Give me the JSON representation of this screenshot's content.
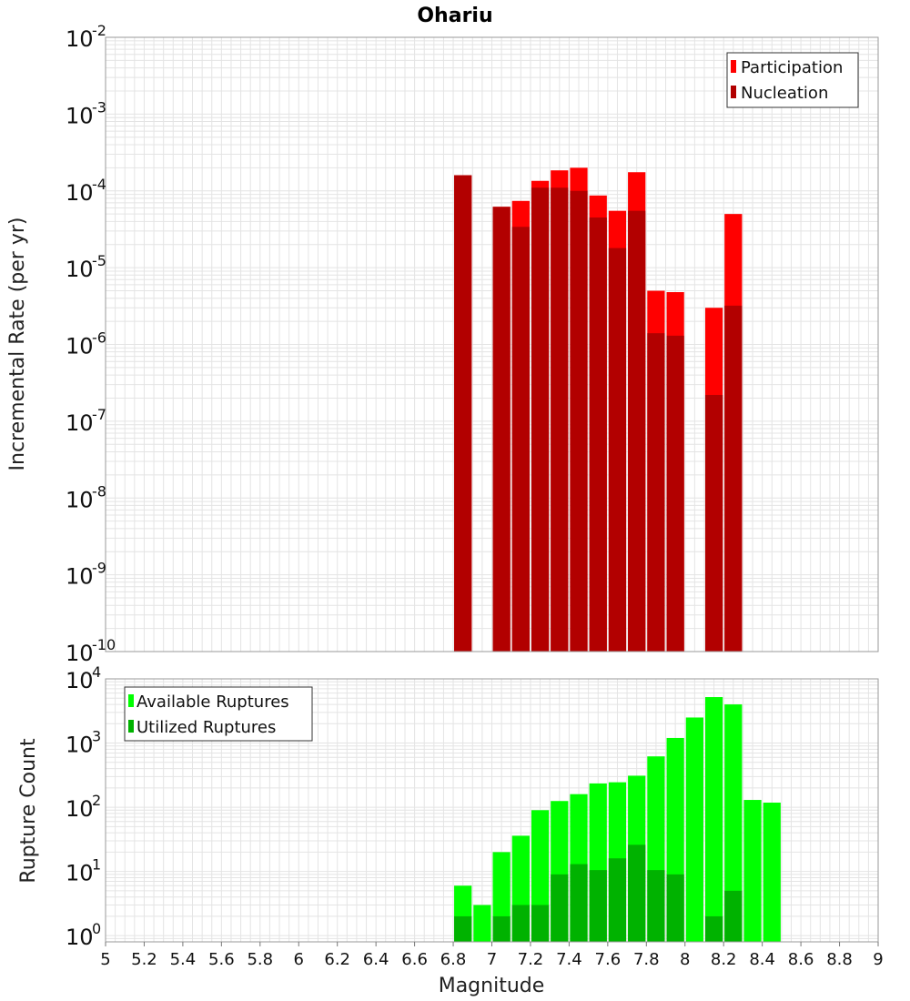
{
  "title": "Ohariu",
  "xlabel": "Magnitude",
  "x_ticks": [
    "5",
    "5.2",
    "5.4",
    "5.6",
    "5.8",
    "6",
    "6.2",
    "6.4",
    "6.6",
    "6.8",
    "7",
    "7.2",
    "7.4",
    "7.6",
    "7.8",
    "8",
    "8.2",
    "8.4",
    "8.6",
    "8.8",
    "9"
  ],
  "colors": {
    "participation": "#ff0000",
    "nucleation": "#b20000",
    "available": "#00ff00",
    "utilized": "#00b200",
    "grid": "#e4e4e4"
  },
  "chart_data": [
    {
      "type": "bar",
      "ylabel": "Incremental Rate (per yr)",
      "yscale": "log",
      "ylim": [
        1e-10,
        0.01
      ],
      "xlim": [
        5,
        9
      ],
      "y_tick_exponents": [
        "-10",
        "-9",
        "-8",
        "-7",
        "-6",
        "-5",
        "-4",
        "-3",
        "-2"
      ],
      "legend": {
        "position": "top-right",
        "entries": [
          "Participation",
          "Nucleation"
        ]
      },
      "x": [
        6.85,
        7.05,
        7.15,
        7.25,
        7.35,
        7.45,
        7.55,
        7.65,
        7.75,
        7.85,
        7.95,
        8.15,
        8.25
      ],
      "series": [
        {
          "name": "Participation",
          "values": [
            0.00016,
            6.2e-05,
            7.4e-05,
            0.000135,
            0.000185,
            0.0002,
            8.7e-05,
            5.5e-05,
            0.000175,
            5e-06,
            4.8e-06,
            3e-06,
            5e-05
          ]
        },
        {
          "name": "Nucleation",
          "values": [
            0.00016,
            6.2e-05,
            3.4e-05,
            0.00011,
            0.00011,
            0.0001,
            4.5e-05,
            1.8e-05,
            5.5e-05,
            1.4e-06,
            1.3e-06,
            2.2e-07,
            3.2e-06
          ]
        }
      ]
    },
    {
      "type": "bar",
      "ylabel": "Rupture Count",
      "yscale": "log",
      "ylim": [
        0.8,
        10000
      ],
      "xlim": [
        5,
        9
      ],
      "y_tick_exponents": [
        "0",
        "1",
        "2",
        "3",
        "4"
      ],
      "legend": {
        "position": "top-left",
        "entries": [
          "Available Ruptures",
          "Utilized Ruptures"
        ]
      },
      "x": [
        6.85,
        6.95,
        7.05,
        7.15,
        7.25,
        7.35,
        7.45,
        7.55,
        7.65,
        7.75,
        7.85,
        7.95,
        8.05,
        8.15,
        8.25,
        8.35,
        8.45
      ],
      "series": [
        {
          "name": "Available Ruptures",
          "values": [
            6,
            3,
            20,
            36,
            90,
            125,
            160,
            235,
            245,
            310,
            620,
            1200,
            2500,
            5200,
            4000,
            130,
            118
          ]
        },
        {
          "name": "Utilized Ruptures",
          "values": [
            2,
            0,
            2,
            3,
            3,
            9,
            13,
            10.5,
            16,
            26,
            10.5,
            9,
            0,
            2,
            5,
            0,
            0
          ]
        }
      ]
    }
  ]
}
